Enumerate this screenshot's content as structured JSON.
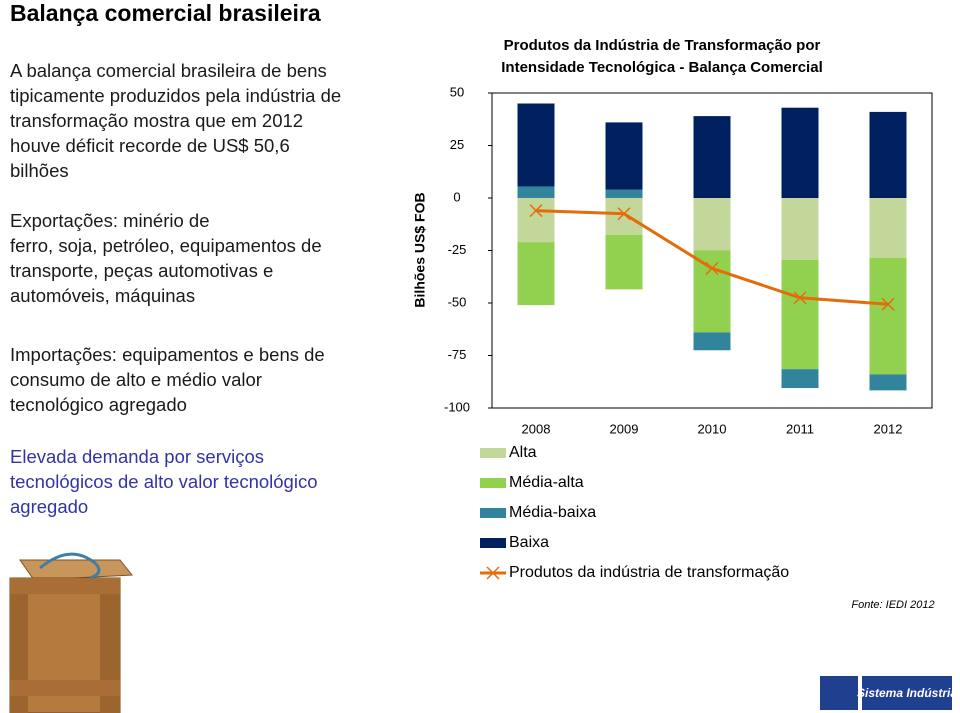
{
  "title": "Balança comercial brasileira",
  "paragraphs": [
    {
      "color": "#1a1a1a",
      "lines": [
        "A balança comercial brasileira de bens",
        "tipicamente produzidos pela indústria de",
        "transformação mostra que em 2012",
        "houve déficit recorde de US$ 50,6",
        "bilhões"
      ]
    },
    {
      "color": "#1a1a1a",
      "lines": [
        "Exportações: minério de",
        "ferro, soja, petróleo, equipamentos de",
        "transporte, peças automotivas e",
        "automóveis, máquinas"
      ]
    },
    {
      "color": "#1a1a1a",
      "lines": [
        "Importações: equipamentos  e bens de",
        "consumo de alto e médio valor",
        "tecnológico agregado"
      ]
    },
    {
      "color": "#3333a6",
      "lines": [
        "Elevada demanda por serviços",
        "tecnológicos de alto valor tecnológico",
        "agregado"
      ]
    }
  ],
  "source": "Fonte: IEDI 2012",
  "logo": "Sistema Indústria",
  "chart_data": {
    "type": "stacked_bar",
    "title": [
      "Produtos da Indústria de Transformação por",
      "Intensidade Tecnológica - Balança Comercial"
    ],
    "ylabel": "Bilhões US$ FOB",
    "categories": [
      "2008",
      "2009",
      "2010",
      "2011",
      "2012"
    ],
    "series": [
      {
        "name": "Alta",
        "color": "#c4d79b",
        "values": [
          -21,
          -17.5,
          -25,
          -29.5,
          -28.5
        ]
      },
      {
        "name": "Média-alta",
        "color": "#92d050",
        "values": [
          -30,
          -26,
          -39,
          -52,
          -55.5
        ]
      },
      {
        "name": "Média-baixa",
        "color": "#31849b",
        "values": [
          5.5,
          4,
          -8.5,
          -9,
          -7.6
        ]
      },
      {
        "name": "Baixa",
        "color": "#002060",
        "values": [
          39.5,
          32,
          39,
          43,
          41
        ]
      },
      {
        "name": "Produtos da indústria de transformação",
        "type": "line",
        "color": "#e46c0a",
        "values": [
          -6,
          -7.5,
          -33.5,
          -47.5,
          -50.6
        ]
      }
    ],
    "ylim": [
      -100,
      50
    ],
    "yticks": [
      -100,
      -75,
      -50,
      -25,
      0,
      25,
      50
    ]
  }
}
